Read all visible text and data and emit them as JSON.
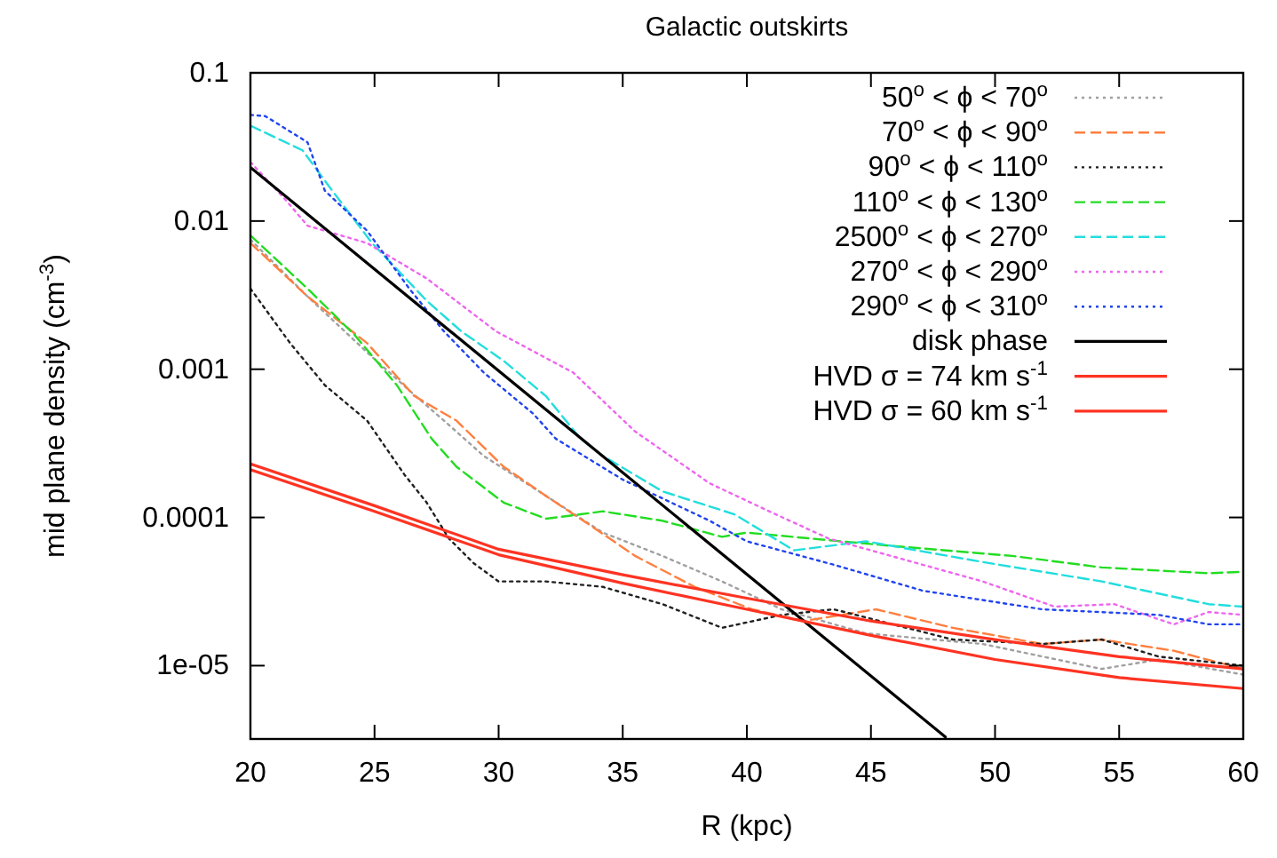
{
  "chart_data": {
    "type": "line",
    "title": "Galactic outskirts",
    "xlabel": "R (kpc)",
    "ylabel": "mid plane density (cm$^{-3}$)",
    "log": "y",
    "grid": false,
    "legend": "top right",
    "xlim": [
      20,
      60
    ],
    "xticks": [
      20,
      25,
      30,
      35,
      40,
      45,
      50,
      55,
      60
    ],
    "ylim": [
      3.2e-06,
      0.1
    ],
    "yticks": [
      0.1,
      0.01,
      0.001,
      0.0001,
      {
        "value": 1e-05,
        "label": "1e-05"
      }
    ],
    "series": [
      {
        "name": "50$^{o}$ < ϕ < 70$^{o}$",
        "color": "#a0a0a0",
        "line_style": "dotted",
        "x": [
          20,
          22.3,
          24.7,
          26.4,
          28,
          29.4,
          31.9,
          34.2,
          36.6,
          39,
          41.4,
          44.8,
          49.5,
          54.3,
          56.6,
          60
        ],
        "values": [
          0.0075,
          0.0031,
          0.0013,
          0.00072,
          0.00042,
          0.00026,
          0.00014,
          7.9e-05,
          5.5e-05,
          3.7e-05,
          2.4e-05,
          1.65e-05,
          1.4e-05,
          9.5e-06,
          1.1e-05,
          8.7e-06
        ]
      },
      {
        "name": "70$^{o}$ < ϕ < 90$^{o}$",
        "color": "#ff7f3f",
        "line_style": "dashed",
        "x": [
          20,
          22.3,
          24.7,
          26.6,
          28.3,
          30.2,
          31.9,
          33.8,
          35.5,
          37.9,
          40.2,
          42.3,
          45.2,
          48.3,
          51.9,
          54.3,
          57.2,
          60
        ],
        "values": [
          0.0071,
          0.0031,
          0.0015,
          0.00066,
          0.00045,
          0.00022,
          0.00014,
          8.6e-05,
          5.5e-05,
          3.4e-05,
          2.4e-05,
          2e-05,
          2.4e-05,
          1.8e-05,
          1.4e-05,
          1.5e-05,
          1.26e-05,
          9.5e-06
        ]
      },
      {
        "name": "90$^{o}$ < ϕ < 110$^{o}$",
        "color": "#202020",
        "line_style": "dotted",
        "x": [
          20,
          21.6,
          23,
          24.7,
          26.2,
          27.1,
          28,
          29,
          30,
          31.9,
          34.2,
          36.6,
          39,
          41.4,
          43.5,
          48.3,
          51.9,
          54.3,
          56.6,
          60
        ],
        "values": [
          0.0035,
          0.0015,
          0.00078,
          0.00045,
          0.000195,
          0.000126,
          7.2e-05,
          4.9e-05,
          3.7e-05,
          3.7e-05,
          3.4e-05,
          2.6e-05,
          1.8e-05,
          2.2e-05,
          2.4e-05,
          1.5e-05,
          1.4e-05,
          1.5e-05,
          1.15e-05,
          1e-05
        ]
      },
      {
        "name": "110$^{o}$ < ϕ < 130$^{o}$",
        "color": "#22dd22",
        "line_style": "dashed",
        "x": [
          20,
          22.3,
          24.2,
          25.9,
          27.3,
          28.3,
          30.2,
          31.9,
          33.3,
          34.2,
          36.6,
          39,
          40,
          45.5,
          50.7,
          54.3,
          58.6,
          60
        ],
        "values": [
          0.008,
          0.0035,
          0.0017,
          0.00078,
          0.00034,
          0.00022,
          0.000126,
          9.8e-05,
          0.000105,
          0.00011,
          9.5e-05,
          7.4e-05,
          7.9e-05,
          6.5e-05,
          5.5e-05,
          4.6e-05,
          4.2e-05,
          4.3e-05
        ]
      },
      {
        "name": "2500$^{o}$ < ϕ < 270$^{o}$",
        "color": "#22dddd",
        "line_style": "dashed",
        "x": [
          20,
          22.1,
          23.3,
          24.9,
          27.1,
          28.5,
          30.2,
          31.9,
          33.3,
          34.2,
          36.6,
          39.5,
          41.9,
          44.8,
          49.5,
          54.3,
          58.6,
          60
        ],
        "values": [
          0.044,
          0.03,
          0.016,
          0.0071,
          0.0029,
          0.0018,
          0.00114,
          0.00066,
          0.00034,
          0.00026,
          0.00015,
          0.000105,
          6e-05,
          6.9e-05,
          5e-05,
          3.7e-05,
          2.6e-05,
          2.5e-05
        ]
      },
      {
        "name": "270$^{o}$ < ϕ < 290$^{o}$",
        "color": "#ee66ee",
        "line_style": "dotted",
        "x": [
          20,
          21.4,
          22.3,
          24.7,
          27.1,
          29.9,
          33,
          35.5,
          38.5,
          40.9,
          43.3,
          49.5,
          52.4,
          54.8,
          57.2,
          58.6,
          60
        ],
        "values": [
          0.025,
          0.014,
          0.0093,
          0.0071,
          0.0041,
          0.0018,
          0.00095,
          0.00038,
          0.00017,
          0.00011,
          7.2e-05,
          3.7e-05,
          2.5e-05,
          2.6e-05,
          1.9e-05,
          2.3e-05,
          2.2e-05
        ]
      },
      {
        "name": "290$^{o}$ < ϕ < 310$^{o}$",
        "color": "#2244ee",
        "line_style": "dotted",
        "x": [
          20,
          20.6,
          22.3,
          23,
          24.7,
          26.4,
          27.8,
          29.4,
          31.4,
          32.3,
          35,
          38.5,
          40,
          43.5,
          47.1,
          51.9,
          56.6,
          58.6,
          60
        ],
        "values": [
          0.052,
          0.051,
          0.034,
          0.016,
          0.0086,
          0.0035,
          0.0018,
          0.00095,
          0.0005,
          0.00034,
          0.00018,
          9.5e-05,
          6.9e-05,
          4.8e-05,
          3.2e-05,
          2.4e-05,
          2.2e-05,
          1.9e-05,
          1.9e-05
        ]
      },
      {
        "name": "disk phase",
        "color": "#000000",
        "line_style": "solid",
        "x": [
          20,
          48
        ],
        "values": [
          0.023,
          3.3e-06
        ]
      },
      {
        "name": "HVD σ = 74 km s$^{-1}$",
        "color": "#ff3322",
        "line_style": "solid",
        "x": [
          20,
          25,
          30,
          35,
          40,
          45,
          50,
          55,
          60
        ],
        "values": [
          0.00023,
          0.00012,
          6.1e-05,
          4.1e-05,
          2.85e-05,
          2e-05,
          1.5e-05,
          1.15e-05,
          9.5e-06
        ]
      },
      {
        "name": "HVD σ = 60 km s$^{-1}$",
        "color": "#ff3322",
        "line_style": "solid",
        "x": [
          20,
          25,
          30,
          35,
          40,
          45,
          50,
          55,
          60
        ],
        "values": [
          0.00021,
          0.00011,
          5.6e-05,
          3.6e-05,
          2.4e-05,
          1.6e-05,
          1.1e-05,
          8.3e-06,
          7e-06
        ]
      }
    ]
  }
}
